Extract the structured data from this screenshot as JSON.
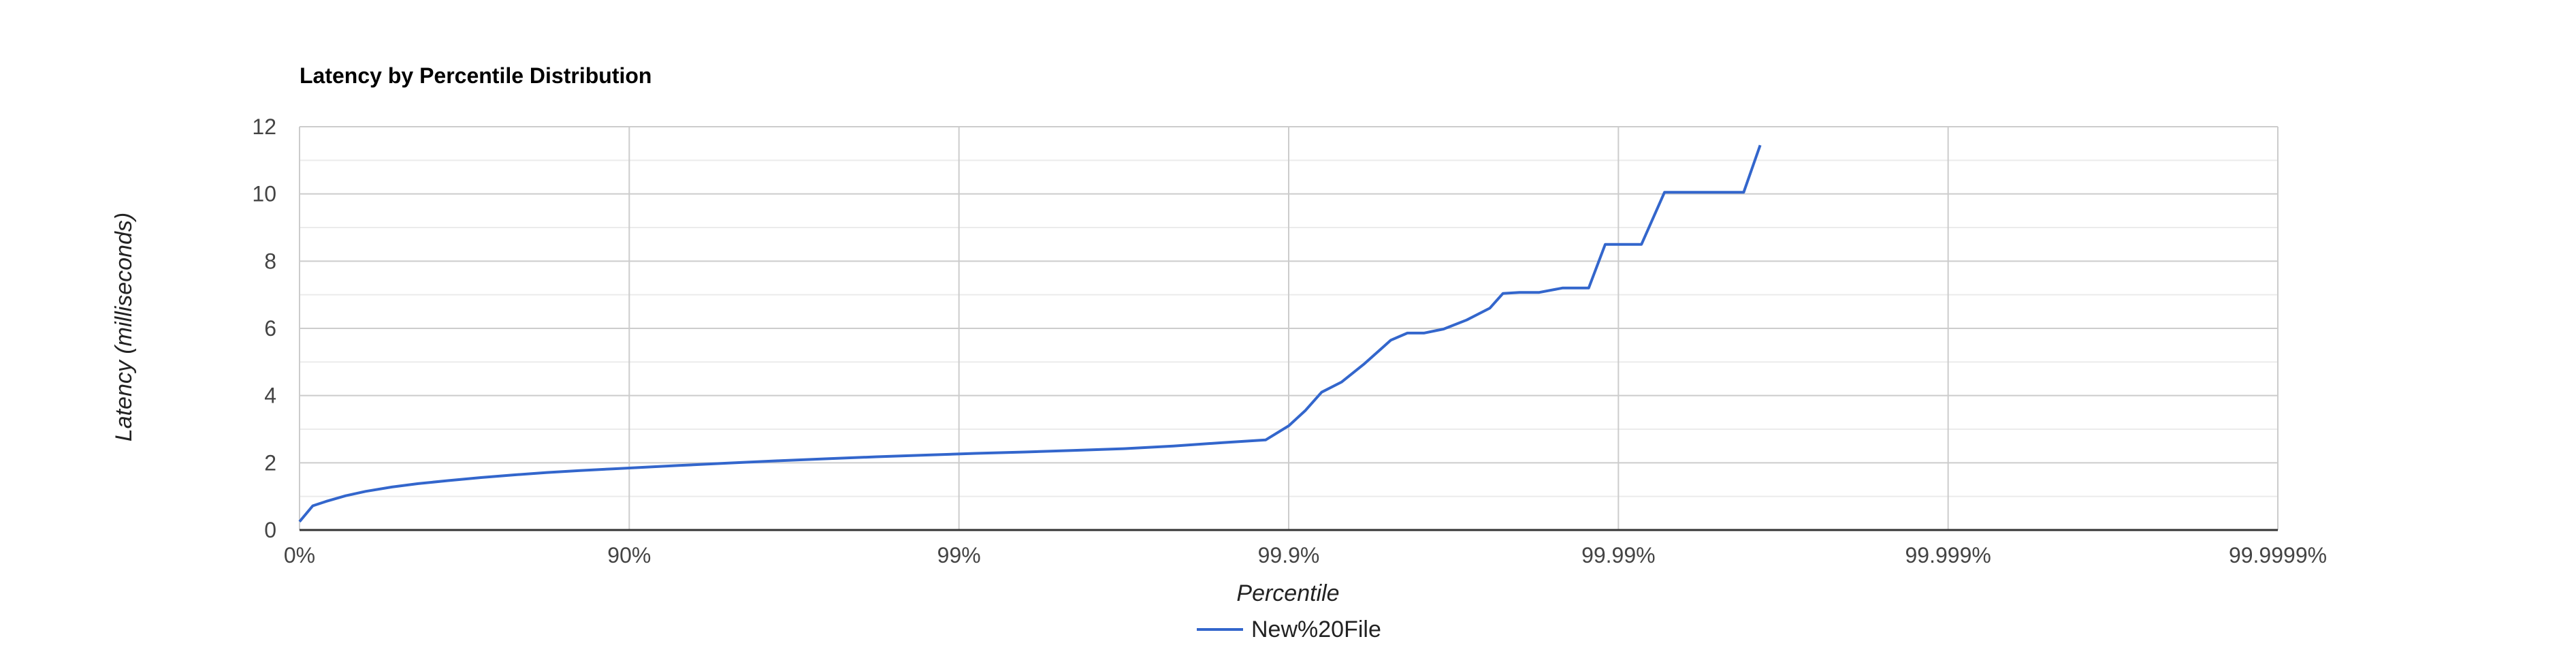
{
  "chart_data": {
    "type": "line",
    "title": "Latency by Percentile Distribution",
    "xlabel": "Percentile",
    "ylabel": "Latency (milliseconds)",
    "x_scale": "log-nines",
    "x_ticks": [
      "0%",
      "90%",
      "99%",
      "99.9%",
      "99.99%",
      "99.999%",
      "99.9999%"
    ],
    "x_tick_nines": [
      0,
      1,
      2,
      3,
      4,
      5,
      6
    ],
    "ylim": [
      0,
      12
    ],
    "y_ticks": [
      0,
      2,
      4,
      6,
      8,
      10,
      12
    ],
    "grid": true,
    "legend_position": "bottom",
    "colors": {
      "series": "#3366cc",
      "grid_major": "#cccccc",
      "grid_minor": "#ebebeb",
      "baseline": "#333333"
    },
    "series": [
      {
        "name": "New%20File",
        "points": [
          [
            0.0,
            0.25
          ],
          [
            0.04,
            0.72
          ],
          [
            0.08,
            0.85
          ],
          [
            0.14,
            1.02
          ],
          [
            0.2,
            1.15
          ],
          [
            0.28,
            1.28
          ],
          [
            0.36,
            1.38
          ],
          [
            0.45,
            1.47
          ],
          [
            0.55,
            1.56
          ],
          [
            0.65,
            1.64
          ],
          [
            0.75,
            1.71
          ],
          [
            0.85,
            1.77
          ],
          [
            0.95,
            1.82
          ],
          [
            1.05,
            1.87
          ],
          [
            1.15,
            1.92
          ],
          [
            1.3,
            1.99
          ],
          [
            1.45,
            2.06
          ],
          [
            1.6,
            2.12
          ],
          [
            1.75,
            2.18
          ],
          [
            1.9,
            2.23
          ],
          [
            2.05,
            2.28
          ],
          [
            2.2,
            2.32
          ],
          [
            2.35,
            2.37
          ],
          [
            2.5,
            2.42
          ],
          [
            2.65,
            2.5
          ],
          [
            2.8,
            2.6
          ],
          [
            2.93,
            2.68
          ],
          [
            3.0,
            3.1
          ],
          [
            3.05,
            3.55
          ],
          [
            3.1,
            4.1
          ],
          [
            3.16,
            4.4
          ],
          [
            3.23,
            4.95
          ],
          [
            3.31,
            5.65
          ],
          [
            3.36,
            5.86
          ],
          [
            3.41,
            5.86
          ],
          [
            3.47,
            5.98
          ],
          [
            3.54,
            6.25
          ],
          [
            3.61,
            6.6
          ],
          [
            3.65,
            7.04
          ],
          [
            3.7,
            7.07
          ],
          [
            3.76,
            7.07
          ],
          [
            3.83,
            7.2
          ],
          [
            3.91,
            7.2
          ],
          [
            3.96,
            8.5
          ],
          [
            4.07,
            8.5
          ],
          [
            4.14,
            10.05
          ],
          [
            4.38,
            10.05
          ],
          [
            4.43,
            11.45
          ]
        ]
      }
    ]
  }
}
